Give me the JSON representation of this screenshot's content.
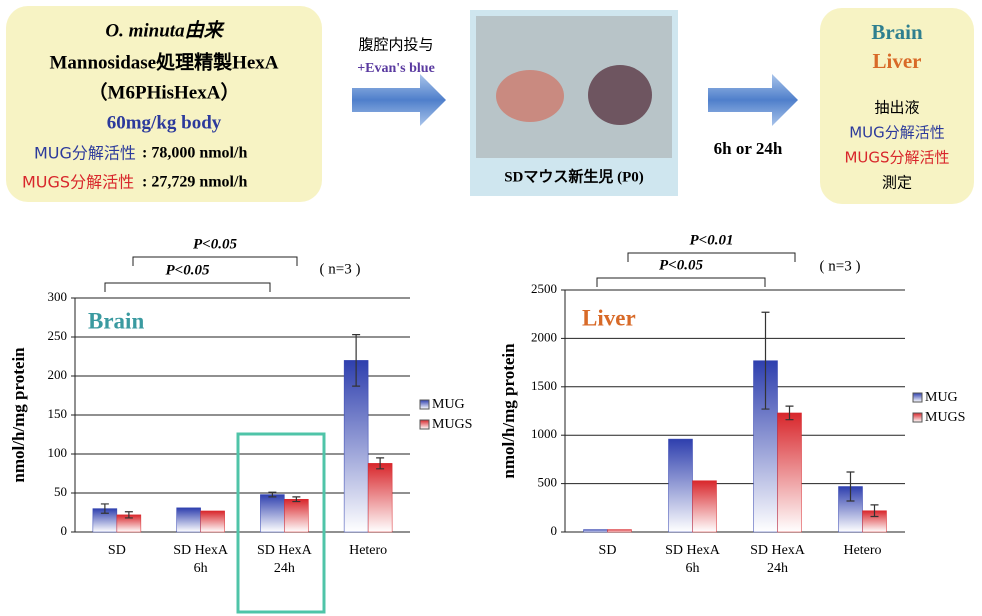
{
  "diagram": {
    "source": {
      "lines": [
        "O. minuta由来",
        "Mannosidase処理精製HexA",
        "（M6PHisHexA）",
        "60mg/kg body"
      ],
      "mug_label": "MUG分解活性",
      "mug_value": ": 78,000 nmol/h",
      "mugs_label": "MUGS分解活性",
      "mugs_value": ": 27,729 nmol/h"
    },
    "step1": [
      "腹腔内投与",
      "+Evan's blue"
    ],
    "photo_caption": "SDマウス新生児 (P0)",
    "step2": "6h or 24h",
    "result": {
      "organs": [
        "Brain",
        "Liver"
      ],
      "lines": [
        "抽出液",
        "MUG分解活性",
        "MUGS分解活性",
        "測定"
      ]
    }
  },
  "chart_data": [
    {
      "type": "bar",
      "title": "Brain",
      "ylabel": "nmol/h/mg protein",
      "categories": [
        [
          "SD"
        ],
        [
          "SD HexA",
          "6h"
        ],
        [
          "SD HexA",
          "24h"
        ],
        [
          "Hetero"
        ]
      ],
      "series": [
        {
          "name": "MUG",
          "color": "#2e3fae",
          "values": [
            30,
            31,
            48,
            220
          ],
          "errors": [
            6,
            null,
            3,
            33
          ]
        },
        {
          "name": "MUGS",
          "color": "#d8262b",
          "values": [
            22,
            27,
            42,
            88
          ],
          "errors": [
            4,
            null,
            3,
            7
          ]
        }
      ],
      "ylim": [
        0,
        300
      ],
      "yticks": [
        0,
        50,
        100,
        150,
        200,
        250,
        300
      ],
      "grid": true,
      "annotations": [
        "P<0.05",
        "P<0.05",
        "( n=3 )"
      ],
      "legend": "right"
    },
    {
      "type": "bar",
      "title": "Liver",
      "ylabel": "nmol/h/mg protein",
      "categories": [
        [
          "SD"
        ],
        [
          "SD HexA",
          "6h"
        ],
        [
          "SD HexA",
          "24h"
        ],
        [
          "Hetero"
        ]
      ],
      "series": [
        {
          "name": "MUG",
          "color": "#2e3fae",
          "values": [
            25,
            960,
            1770,
            470
          ],
          "errors": [
            null,
            null,
            500,
            150
          ]
        },
        {
          "name": "MUGS",
          "color": "#d8262b",
          "values": [
            25,
            530,
            1230,
            220
          ],
          "errors": [
            null,
            null,
            70,
            60
          ]
        }
      ],
      "ylim": [
        0,
        2500
      ],
      "yticks": [
        0,
        500,
        1000,
        1500,
        2000,
        2500
      ],
      "grid": true,
      "annotations": [
        "P<0.01",
        "P<0.05",
        "( n=3 )"
      ],
      "legend": "right"
    }
  ]
}
